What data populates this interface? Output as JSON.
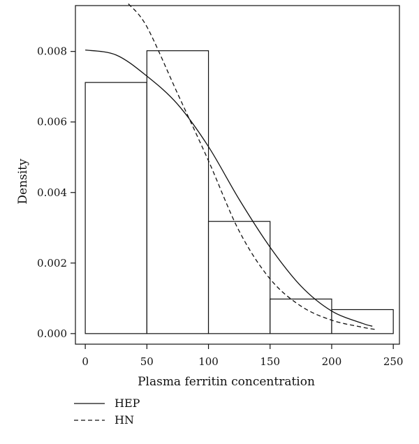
{
  "chart_data": {
    "type": "bar",
    "subtype": "histogram with fitted density curves",
    "xlabel": "Plasma ferritin concentration",
    "ylabel": "Density",
    "xlim": [
      -8,
      255
    ],
    "ylim": [
      -0.0003,
      0.0093
    ],
    "x_ticks": [
      0,
      50,
      100,
      150,
      200,
      250
    ],
    "y_ticks": [
      0.0,
      0.002,
      0.004,
      0.006,
      0.008
    ],
    "y_tick_labels": [
      "0.000",
      "0.002",
      "0.004",
      "0.006",
      "0.008"
    ],
    "bins": [
      {
        "from": 0,
        "to": 50,
        "value": 0.00712
      },
      {
        "from": 50,
        "to": 100,
        "value": 0.00802
      },
      {
        "from": 100,
        "to": 150,
        "value": 0.00318
      },
      {
        "from": 150,
        "to": 200,
        "value": 0.00098
      },
      {
        "from": 200,
        "to": 250,
        "value": 0.00068
      }
    ],
    "series": [
      {
        "name": "HEP",
        "style": "solid",
        "x": [
          0,
          25,
          50,
          75,
          100,
          125,
          150,
          175,
          200,
          225,
          233
        ],
        "values": [
          0.00804,
          0.0079,
          0.0073,
          0.0065,
          0.0053,
          0.0038,
          0.00245,
          0.00135,
          0.00064,
          0.00029,
          0.00021
        ]
      },
      {
        "name": "HN",
        "style": "dashed",
        "x": [
          35,
          50,
          75,
          100,
          125,
          150,
          175,
          200,
          225,
          235
        ],
        "values": [
          0.00935,
          0.0087,
          0.0068,
          0.0049,
          0.0029,
          0.00155,
          0.00078,
          0.00038,
          0.00018,
          0.00012
        ]
      }
    ],
    "grid": false,
    "legend_position": "bottom-left"
  }
}
